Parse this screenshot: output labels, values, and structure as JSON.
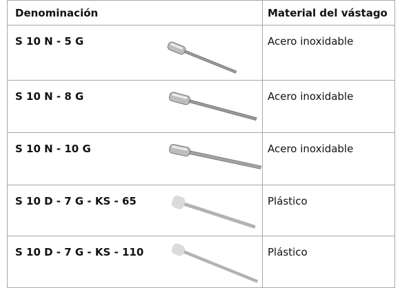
{
  "table": {
    "headers": [
      "Denominación",
      "Material del vástago"
    ],
    "rows": [
      [
        "S 10 N - 5 G",
        "Acero inoxidable"
      ],
      [
        "S 10 N - 8 G",
        "Acero inoxidable"
      ],
      [
        "S 10 N - 10 G",
        "Acero inoxidable"
      ],
      [
        "S 10 D - 7 G - KS - 65",
        "Plástico"
      ],
      [
        "S 10 D - 7 G - KS - 110",
        "Plástico"
      ]
    ]
  }
}
